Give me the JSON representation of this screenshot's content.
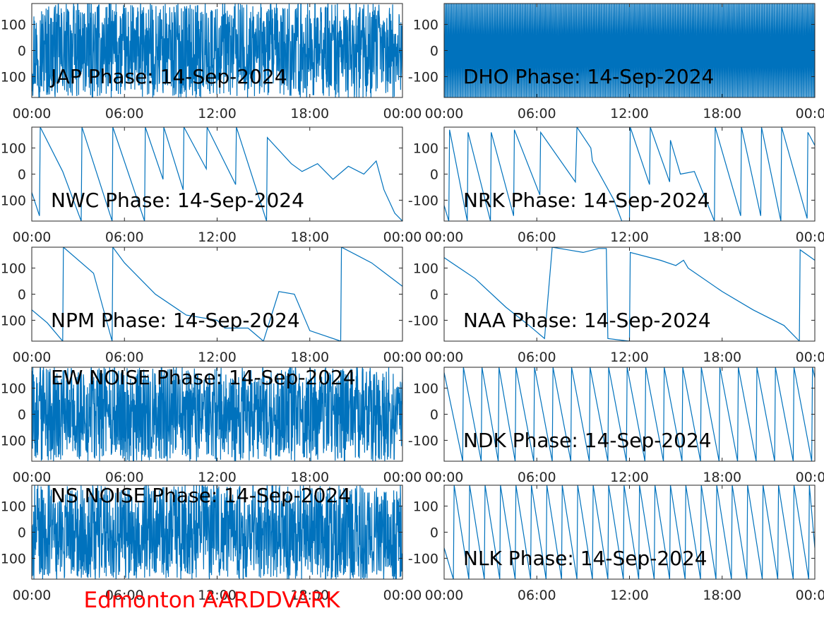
{
  "figure": {
    "footer_label": "Edmonton AARDDVARK",
    "footer_color": "#ff0000",
    "line_color": "#0072bd",
    "axis_color": "#262626",
    "background": "#ffffff"
  },
  "chart_data": [
    {
      "type": "line",
      "title": "JAP Phase: 14-Sep-2024",
      "xlabel": "",
      "ylabel": "",
      "xlim": [
        0,
        24
      ],
      "ylim": [
        -180,
        180
      ],
      "x_ticks": [
        "00:00",
        "06:00",
        "12:00",
        "18:00",
        "00:00"
      ],
      "y_ticks": [
        "100",
        "0",
        "-100"
      ],
      "y_tick_values": [
        100,
        0,
        -100
      ],
      "grid": false,
      "pattern": "noise",
      "series": [
        {
          "x": [],
          "y": []
        }
      ]
    },
    {
      "type": "line",
      "title": "DHO Phase: 14-Sep-2024",
      "xlabel": "",
      "ylabel": "",
      "xlim": [
        0,
        24
      ],
      "ylim": [
        -180,
        180
      ],
      "x_ticks": [
        "00:00",
        "06:00",
        "12:00",
        "18:00",
        "00:00"
      ],
      "y_ticks": [
        "100",
        "0",
        "-100"
      ],
      "y_tick_values": [
        100,
        0,
        -100
      ],
      "grid": false,
      "pattern": "dense-wrap",
      "series": [
        {
          "x": [],
          "y": []
        }
      ]
    },
    {
      "type": "line",
      "title": "NWC Phase: 14-Sep-2024",
      "xlabel": "",
      "ylabel": "",
      "xlim": [
        0,
        24
      ],
      "ylim": [
        -180,
        180
      ],
      "x_ticks": [
        "00:00",
        "06:00",
        "12:00",
        "18:00",
        "00:00"
      ],
      "y_ticks": [
        "100",
        "0",
        "-100"
      ],
      "y_tick_values": [
        100,
        0,
        -100
      ],
      "grid": false,
      "pattern": "wrap",
      "series": [
        {
          "x": [
            0,
            0.5,
            0.55,
            2.0,
            3.2,
            3.25,
            5.2,
            5.25,
            7.3,
            7.35,
            8.5,
            8.55,
            9.8,
            9.85,
            11.3,
            11.35,
            13.2,
            13.25,
            15.2,
            15.25,
            16.8,
            17.5,
            18.5,
            19.5,
            20.5,
            21.5,
            22.3,
            22.8,
            23.5,
            24
          ],
          "y": [
            -70,
            -160,
            180,
            10,
            -180,
            180,
            -180,
            180,
            -180,
            180,
            -20,
            180,
            -60,
            180,
            20,
            180,
            -40,
            180,
            -180,
            140,
            40,
            10,
            40,
            -20,
            30,
            0,
            50,
            -60,
            -150,
            -180
          ]
        }
      ]
    },
    {
      "type": "line",
      "title": "NRK Phase: 14-Sep-2024",
      "xlabel": "",
      "ylabel": "",
      "xlim": [
        0,
        24
      ],
      "ylim": [
        -180,
        180
      ],
      "x_ticks": [
        "00:00",
        "06:00",
        "12:00",
        "18:00",
        "00:00"
      ],
      "y_ticks": [
        "100",
        "0",
        "-100"
      ],
      "y_tick_values": [
        100,
        0,
        -100
      ],
      "grid": false,
      "pattern": "wrap",
      "series": [
        {
          "x": [
            0,
            0.3,
            0.35,
            1.5,
            1.55,
            3.0,
            3.05,
            4.5,
            4.55,
            6.2,
            6.25,
            8.5,
            8.6,
            9.5,
            9.6,
            11.0,
            11.5,
            12.0,
            12.05,
            13.3,
            13.35,
            14.6,
            14.65,
            15.3,
            16.2,
            17.5,
            17.55,
            19.2,
            19.25,
            20.5,
            20.55,
            21.8,
            21.85,
            23.5,
            23.55,
            24
          ],
          "y": [
            -120,
            -180,
            170,
            -180,
            160,
            -180,
            160,
            -160,
            170,
            -80,
            160,
            -30,
            180,
            100,
            50,
            -100,
            -180,
            -180,
            180,
            -40,
            180,
            -30,
            130,
            0,
            10,
            -180,
            180,
            -160,
            180,
            -160,
            180,
            -180,
            180,
            -170,
            160,
            110
          ]
        }
      ]
    },
    {
      "type": "line",
      "title": "NPM Phase: 14-Sep-2024",
      "xlabel": "",
      "ylabel": "",
      "xlim": [
        0,
        24
      ],
      "ylim": [
        -180,
        180
      ],
      "x_ticks": [
        "00:00",
        "06:00",
        "12:00",
        "18:00",
        "00:00"
      ],
      "y_ticks": [
        "100",
        "0",
        "-100"
      ],
      "y_tick_values": [
        100,
        0,
        -100
      ],
      "grid": false,
      "pattern": "wrap",
      "series": [
        {
          "x": [
            0,
            1.0,
            2.0,
            2.05,
            4.0,
            5.2,
            5.25,
            6.0,
            8.0,
            10.0,
            12.0,
            12.5,
            14.0,
            15.0,
            16.0,
            17.0,
            18.0,
            20.0,
            20.05,
            22.0,
            24
          ],
          "y": [
            -60,
            -110,
            -180,
            180,
            80,
            -180,
            180,
            120,
            0,
            -80,
            -100,
            -130,
            -130,
            -180,
            10,
            0,
            -140,
            -180,
            180,
            120,
            30
          ]
        }
      ]
    },
    {
      "type": "line",
      "title": "NAA Phase: 14-Sep-2024",
      "xlabel": "",
      "ylabel": "",
      "xlim": [
        0,
        24
      ],
      "ylim": [
        -180,
        180
      ],
      "x_ticks": [
        "00:00",
        "06:00",
        "12:00",
        "18:00",
        "00:00"
      ],
      "y_ticks": [
        "100",
        "0",
        "-100"
      ],
      "y_tick_values": [
        100,
        0,
        -100
      ],
      "grid": false,
      "pattern": "wrap",
      "series": [
        {
          "x": [
            0,
            2.0,
            4.0,
            5.5,
            6.5,
            7.0,
            8.0,
            9.0,
            10.0,
            10.5,
            10.6,
            12.0,
            12.05,
            14.0,
            15.0,
            15.5,
            15.8,
            18.0,
            20.0,
            22.0,
            23.0,
            23.05,
            24
          ],
          "y": [
            140,
            60,
            -50,
            -120,
            -170,
            180,
            170,
            160,
            175,
            175,
            -170,
            -180,
            160,
            130,
            110,
            130,
            100,
            10,
            -60,
            -120,
            -180,
            170,
            130
          ]
        }
      ]
    },
    {
      "type": "line",
      "title": "EW NOISE Phase: 14-Sep-2024",
      "xlabel": "",
      "ylabel": "",
      "xlim": [
        0,
        24
      ],
      "ylim": [
        -180,
        180
      ],
      "x_ticks": [
        "00:00",
        "06:00",
        "12:00",
        "18:00",
        "00:00"
      ],
      "y_ticks": [
        "100",
        "0",
        "-100"
      ],
      "y_tick_values": [
        100,
        0,
        -100
      ],
      "grid": false,
      "pattern": "noise",
      "series": [
        {
          "x": [],
          "y": []
        }
      ]
    },
    {
      "type": "line",
      "title": "NDK Phase: 14-Sep-2024",
      "xlabel": "",
      "ylabel": "",
      "xlim": [
        0,
        24
      ],
      "ylim": [
        -180,
        180
      ],
      "x_ticks": [
        "00:00",
        "06:00",
        "12:00",
        "18:00",
        "00:00"
      ],
      "y_ticks": [
        "100",
        "0",
        "-100"
      ],
      "y_tick_values": [
        100,
        0,
        -100
      ],
      "grid": false,
      "pattern": "wrap",
      "series": [
        {
          "x": [
            0,
            1.2,
            1.25,
            2.4,
            2.45,
            3.5,
            3.55,
            4.6,
            4.65,
            5.8,
            5.85,
            7.0,
            7.05,
            8.2,
            8.25,
            9.4,
            9.45,
            10.6,
            10.65,
            11.8,
            11.85,
            13.0,
            13.05,
            14.2,
            14.25,
            15.4,
            15.45,
            16.6,
            16.65,
            17.8,
            17.85,
            19.0,
            19.05,
            20.2,
            20.25,
            21.4,
            21.45,
            22.6,
            22.65,
            23.8,
            23.85,
            24
          ],
          "y": [
            160,
            -180,
            180,
            -180,
            180,
            -180,
            180,
            -180,
            180,
            -180,
            180,
            -180,
            180,
            -180,
            180,
            -180,
            180,
            -180,
            180,
            -180,
            180,
            -180,
            180,
            -180,
            180,
            -180,
            180,
            -180,
            180,
            -180,
            180,
            -180,
            180,
            -180,
            180,
            -180,
            180,
            -180,
            180,
            -180,
            180,
            140
          ]
        }
      ]
    },
    {
      "type": "line",
      "title": "NS NOISE Phase: 14-Sep-2024",
      "xlabel": "",
      "ylabel": "",
      "xlim": [
        0,
        24
      ],
      "ylim": [
        -180,
        180
      ],
      "x_ticks": [
        "00:00",
        "06:00",
        "12:00",
        "18:00",
        "00:00"
      ],
      "y_ticks": [
        "100",
        "0",
        "-100"
      ],
      "y_tick_values": [
        100,
        0,
        -100
      ],
      "grid": false,
      "pattern": "noise",
      "series": [
        {
          "x": [],
          "y": []
        }
      ]
    },
    {
      "type": "line",
      "title": "NLK Phase: 14-Sep-2024",
      "xlabel": "",
      "ylabel": "",
      "xlim": [
        0,
        24
      ],
      "ylim": [
        -180,
        180
      ],
      "x_ticks": [
        "00:00",
        "06:00",
        "12:00",
        "18:00",
        "00:00"
      ],
      "y_ticks": [
        "100",
        "0",
        "-100"
      ],
      "y_tick_values": [
        100,
        0,
        -100
      ],
      "grid": false,
      "pattern": "wrap",
      "series": [
        {
          "x": [
            0,
            0.6,
            0.65,
            1.6,
            1.65,
            2.6,
            2.65,
            3.6,
            3.65,
            4.6,
            4.65,
            5.6,
            5.65,
            6.6,
            6.65,
            7.6,
            7.65,
            8.6,
            8.65,
            9.6,
            9.65,
            10.6,
            10.65,
            11.6,
            11.65,
            12.6,
            12.65,
            13.6,
            13.65,
            14.6,
            14.65,
            15.6,
            15.65,
            16.6,
            16.65,
            17.6,
            17.65,
            18.6,
            18.65,
            19.6,
            19.65,
            20.6,
            20.65,
            21.6,
            21.65,
            22.6,
            22.65,
            23.6,
            23.65,
            24
          ],
          "y": [
            -60,
            -180,
            180,
            -180,
            180,
            -180,
            180,
            -180,
            180,
            -180,
            180,
            -180,
            180,
            -180,
            180,
            -180,
            180,
            -180,
            180,
            -180,
            180,
            -180,
            180,
            -180,
            180,
            -180,
            180,
            -180,
            180,
            -180,
            180,
            -180,
            180,
            -180,
            180,
            -180,
            180,
            -180,
            180,
            -180,
            180,
            -180,
            180,
            -180,
            180,
            -180,
            180,
            -180,
            180,
            -60
          ]
        }
      ]
    }
  ]
}
